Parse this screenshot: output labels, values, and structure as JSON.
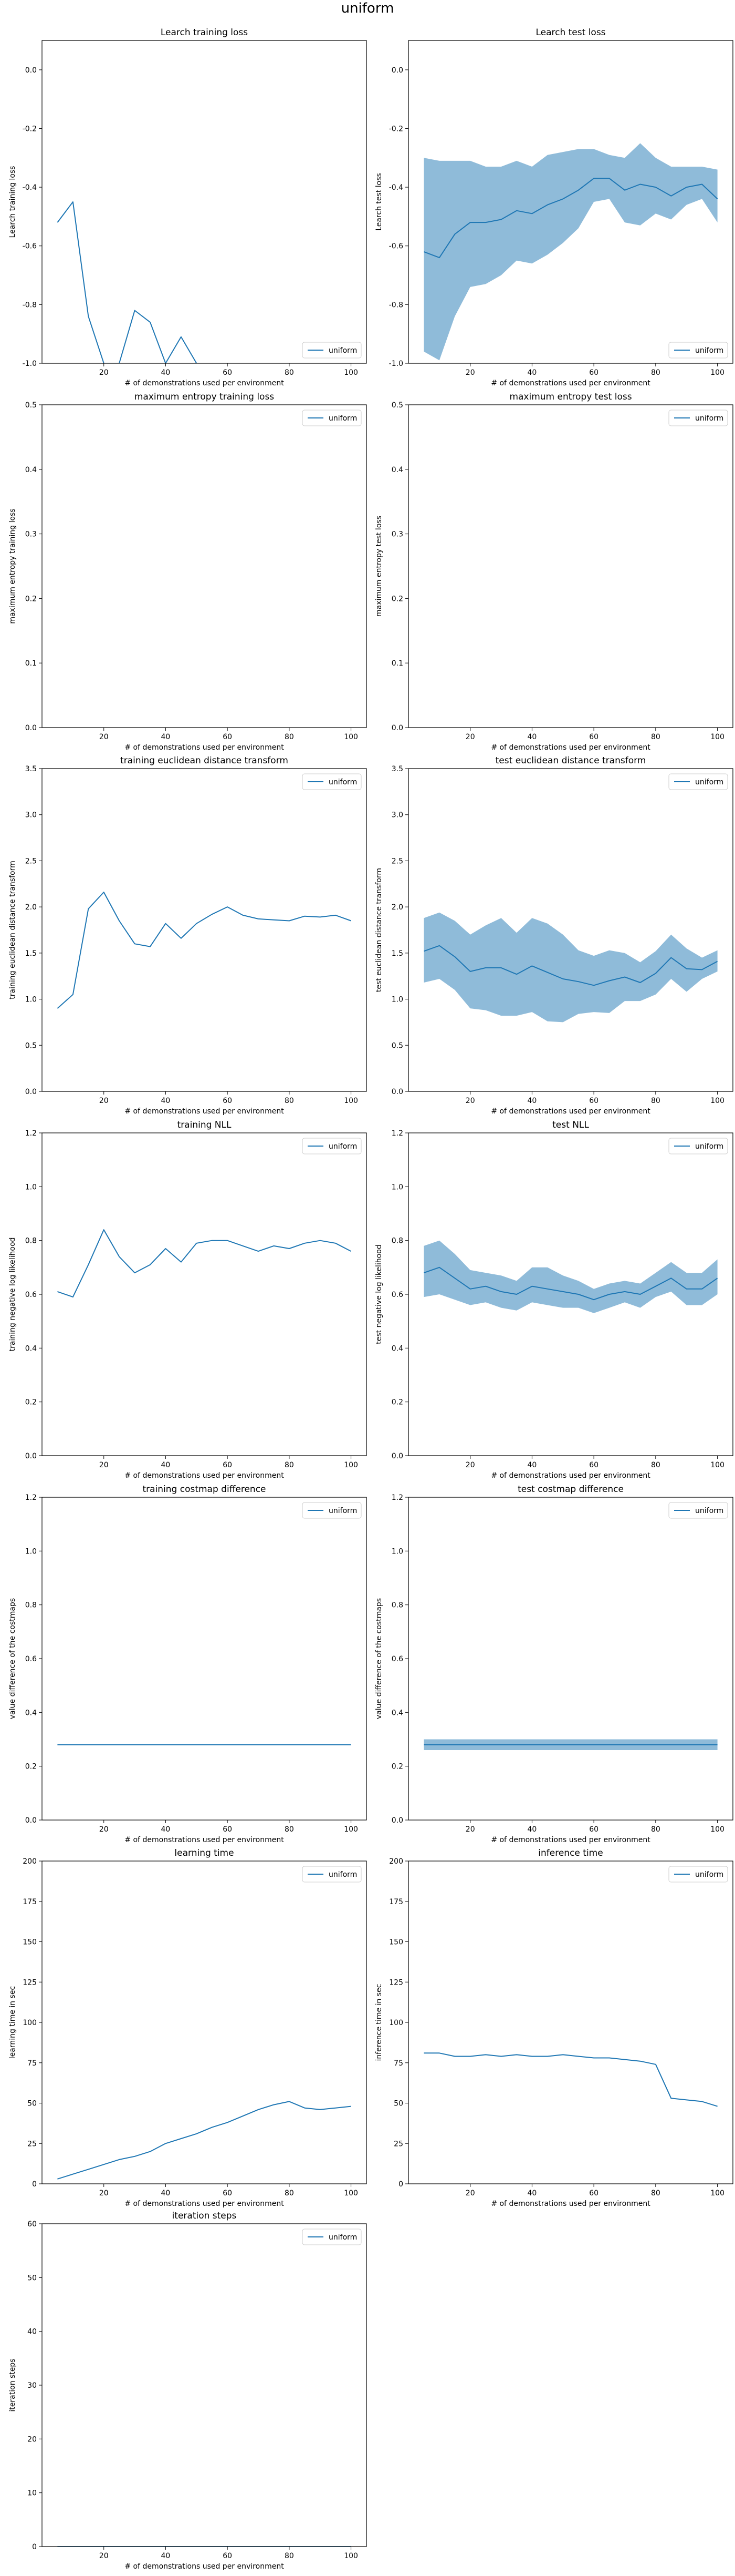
{
  "figure": {
    "suptitle": "uniform"
  },
  "colors": {
    "line": "#1f77b4",
    "band": "#1f77b4"
  },
  "chart_data": [
    {
      "type": "line",
      "title": "Learch training loss",
      "xlabel": "# of demonstrations used per environment",
      "ylabel": "Learch training loss",
      "xlim": [
        0,
        105
      ],
      "ylim": [
        -1.0,
        0.1
      ],
      "xticks": [
        20,
        40,
        60,
        80,
        100
      ],
      "yticks": [
        0.0,
        -0.2,
        -0.4,
        -0.6,
        -0.8,
        -1.0
      ],
      "legend": "lower-right",
      "series": [
        {
          "name": "uniform",
          "x": [
            5,
            10,
            15,
            20,
            25,
            30,
            35,
            40,
            45,
            50
          ],
          "y": [
            -0.52,
            -0.45,
            -0.84,
            -1.0,
            -1.0,
            -0.82,
            -0.86,
            -1.0,
            -0.91,
            -1.0
          ]
        }
      ]
    },
    {
      "type": "line",
      "title": "Learch test loss",
      "xlabel": "# of demonstrations used per environment",
      "ylabel": "Learch test loss",
      "xlim": [
        0,
        105
      ],
      "ylim": [
        -1.0,
        0.1
      ],
      "xticks": [
        20,
        40,
        60,
        80,
        100
      ],
      "yticks": [
        0.0,
        -0.2,
        -0.4,
        -0.6,
        -0.8,
        -1.0
      ],
      "legend": "lower-right",
      "series": [
        {
          "name": "uniform",
          "x": [
            5,
            10,
            15,
            20,
            25,
            30,
            35,
            40,
            45,
            50,
            55,
            60,
            65,
            70,
            75,
            80,
            85,
            90,
            95,
            100
          ],
          "y": [
            -0.62,
            -0.64,
            -0.56,
            -0.52,
            -0.52,
            -0.51,
            -0.48,
            -0.49,
            -0.46,
            -0.44,
            -0.41,
            -0.37,
            -0.37,
            -0.41,
            -0.39,
            -0.4,
            -0.43,
            -0.4,
            -0.39,
            -0.44
          ],
          "lower": [
            -0.96,
            -0.99,
            -0.84,
            -0.74,
            -0.73,
            -0.7,
            -0.65,
            -0.66,
            -0.63,
            -0.59,
            -0.54,
            -0.45,
            -0.44,
            -0.52,
            -0.53,
            -0.49,
            -0.51,
            -0.46,
            -0.44,
            -0.52
          ],
          "upper": [
            -0.3,
            -0.31,
            -0.31,
            -0.31,
            -0.33,
            -0.33,
            -0.31,
            -0.33,
            -0.29,
            -0.28,
            -0.27,
            -0.27,
            -0.29,
            -0.3,
            -0.25,
            -0.3,
            -0.33,
            -0.33,
            -0.33,
            -0.34
          ]
        }
      ]
    },
    {
      "type": "line",
      "title": "maximum entropy training loss",
      "xlabel": "# of demonstrations used per environment",
      "ylabel": "maximum entropy training loss",
      "xlim": [
        0,
        105
      ],
      "ylim": [
        0.0,
        0.5
      ],
      "xticks": [
        20,
        40,
        60,
        80,
        100
      ],
      "yticks": [
        0.0,
        0.1,
        0.2,
        0.3,
        0.4,
        0.5
      ],
      "legend": "top-right",
      "series": [
        {
          "name": "uniform",
          "x": [],
          "y": []
        }
      ]
    },
    {
      "type": "line",
      "title": "maximum entropy test loss",
      "xlabel": "# of demonstrations used per environment",
      "ylabel": "maximum entropy test loss",
      "xlim": [
        0,
        105
      ],
      "ylim": [
        0.0,
        0.5
      ],
      "xticks": [
        20,
        40,
        60,
        80,
        100
      ],
      "yticks": [
        0.0,
        0.1,
        0.2,
        0.3,
        0.4,
        0.5
      ],
      "legend": "top-right",
      "series": [
        {
          "name": "uniform",
          "x": [],
          "y": []
        }
      ]
    },
    {
      "type": "line",
      "title": "training euclidean distance transform",
      "xlabel": "# of demonstrations used per environment",
      "ylabel": "training euclidean distance transform",
      "xlim": [
        0,
        105
      ],
      "ylim": [
        0.0,
        3.5
      ],
      "xticks": [
        20,
        40,
        60,
        80,
        100
      ],
      "yticks": [
        0.0,
        0.5,
        1.0,
        1.5,
        2.0,
        2.5,
        3.0,
        3.5
      ],
      "legend": "top-right",
      "series": [
        {
          "name": "uniform",
          "x": [
            5,
            10,
            15,
            20,
            25,
            30,
            35,
            40,
            45,
            50,
            55,
            60,
            65,
            70,
            75,
            80,
            85,
            90,
            95,
            100
          ],
          "y": [
            0.9,
            1.05,
            1.98,
            2.16,
            1.85,
            1.6,
            1.57,
            1.82,
            1.66,
            1.82,
            1.92,
            2.0,
            1.91,
            1.87,
            1.86,
            1.85,
            1.9,
            1.89,
            1.91,
            1.85
          ]
        }
      ]
    },
    {
      "type": "line",
      "title": "test euclidean distance transform",
      "xlabel": "# of demonstrations used per environment",
      "ylabel": "test euclidean distance transform",
      "xlim": [
        0,
        105
      ],
      "ylim": [
        0.0,
        3.5
      ],
      "xticks": [
        20,
        40,
        60,
        80,
        100
      ],
      "yticks": [
        0.0,
        0.5,
        1.0,
        1.5,
        2.0,
        2.5,
        3.0,
        3.5
      ],
      "legend": "top-right",
      "series": [
        {
          "name": "uniform",
          "x": [
            5,
            10,
            15,
            20,
            25,
            30,
            35,
            40,
            45,
            50,
            55,
            60,
            65,
            70,
            75,
            80,
            85,
            90,
            95,
            100
          ],
          "y": [
            1.52,
            1.58,
            1.46,
            1.3,
            1.34,
            1.34,
            1.27,
            1.36,
            1.29,
            1.22,
            1.19,
            1.15,
            1.2,
            1.24,
            1.18,
            1.28,
            1.45,
            1.33,
            1.32,
            1.41
          ],
          "lower": [
            1.18,
            1.22,
            1.1,
            0.9,
            0.88,
            0.82,
            0.82,
            0.86,
            0.76,
            0.75,
            0.84,
            0.86,
            0.85,
            0.98,
            0.98,
            1.05,
            1.22,
            1.08,
            1.22,
            1.3
          ],
          "upper": [
            1.88,
            1.94,
            1.85,
            1.7,
            1.8,
            1.88,
            1.72,
            1.88,
            1.82,
            1.7,
            1.53,
            1.47,
            1.53,
            1.5,
            1.4,
            1.52,
            1.7,
            1.55,
            1.45,
            1.53
          ]
        }
      ]
    },
    {
      "type": "line",
      "title": "training NLL",
      "xlabel": "# of demonstrations used per environment",
      "ylabel": "training negative log likelihood",
      "xlim": [
        0,
        105
      ],
      "ylim": [
        0.0,
        1.2
      ],
      "xticks": [
        20,
        40,
        60,
        80,
        100
      ],
      "yticks": [
        0.0,
        0.2,
        0.4,
        0.6,
        0.8,
        1.0,
        1.2
      ],
      "legend": "top-right",
      "series": [
        {
          "name": "uniform",
          "x": [
            5,
            10,
            15,
            20,
            25,
            30,
            35,
            40,
            45,
            50,
            55,
            60,
            65,
            70,
            75,
            80,
            85,
            90,
            95,
            100
          ],
          "y": [
            0.61,
            0.59,
            0.71,
            0.84,
            0.74,
            0.68,
            0.71,
            0.77,
            0.72,
            0.79,
            0.8,
            0.8,
            0.78,
            0.76,
            0.78,
            0.77,
            0.79,
            0.8,
            0.79,
            0.76
          ]
        }
      ]
    },
    {
      "type": "line",
      "title": "test NLL",
      "xlabel": "# of demonstrations used per environment",
      "ylabel": "test negative log likelihood",
      "xlim": [
        0,
        105
      ],
      "ylim": [
        0.0,
        1.2
      ],
      "xticks": [
        20,
        40,
        60,
        80,
        100
      ],
      "yticks": [
        0.0,
        0.2,
        0.4,
        0.6,
        0.8,
        1.0,
        1.2
      ],
      "legend": "top-right",
      "series": [
        {
          "name": "uniform",
          "x": [
            5,
            10,
            15,
            20,
            25,
            30,
            35,
            40,
            45,
            50,
            55,
            60,
            65,
            70,
            75,
            80,
            85,
            90,
            95,
            100
          ],
          "y": [
            0.68,
            0.7,
            0.66,
            0.62,
            0.63,
            0.61,
            0.6,
            0.63,
            0.62,
            0.61,
            0.6,
            0.58,
            0.6,
            0.61,
            0.6,
            0.63,
            0.66,
            0.62,
            0.62,
            0.66
          ],
          "lower": [
            0.59,
            0.6,
            0.58,
            0.56,
            0.57,
            0.55,
            0.54,
            0.57,
            0.56,
            0.55,
            0.55,
            0.53,
            0.55,
            0.57,
            0.55,
            0.59,
            0.61,
            0.56,
            0.56,
            0.6
          ],
          "upper": [
            0.78,
            0.8,
            0.75,
            0.69,
            0.68,
            0.67,
            0.65,
            0.7,
            0.7,
            0.67,
            0.65,
            0.62,
            0.64,
            0.65,
            0.64,
            0.68,
            0.72,
            0.68,
            0.68,
            0.73
          ]
        }
      ]
    },
    {
      "type": "line",
      "title": "training costmap difference",
      "xlabel": "# of demonstrations used per environment",
      "ylabel": "value difference of the costmaps",
      "xlim": [
        0,
        105
      ],
      "ylim": [
        0.0,
        1.2
      ],
      "xticks": [
        20,
        40,
        60,
        80,
        100
      ],
      "yticks": [
        0.0,
        0.2,
        0.4,
        0.6,
        0.8,
        1.0,
        1.2
      ],
      "legend": "top-right",
      "series": [
        {
          "name": "uniform",
          "x": [
            5,
            10,
            15,
            20,
            25,
            30,
            35,
            40,
            45,
            50,
            55,
            60,
            65,
            70,
            75,
            80,
            85,
            90,
            95,
            100
          ],
          "y": [
            0.28,
            0.28,
            0.28,
            0.28,
            0.28,
            0.28,
            0.28,
            0.28,
            0.28,
            0.28,
            0.28,
            0.28,
            0.28,
            0.28,
            0.28,
            0.28,
            0.28,
            0.28,
            0.28,
            0.28
          ]
        }
      ]
    },
    {
      "type": "line",
      "title": "test costmap difference",
      "xlabel": "# of demonstrations used per environment",
      "ylabel": "value difference of the costmaps",
      "xlim": [
        0,
        105
      ],
      "ylim": [
        0.0,
        1.2
      ],
      "xticks": [
        20,
        40,
        60,
        80,
        100
      ],
      "yticks": [
        0.0,
        0.2,
        0.4,
        0.6,
        0.8,
        1.0,
        1.2
      ],
      "legend": "top-right",
      "series": [
        {
          "name": "uniform",
          "x": [
            5,
            10,
            15,
            20,
            25,
            30,
            35,
            40,
            45,
            50,
            55,
            60,
            65,
            70,
            75,
            80,
            85,
            90,
            95,
            100
          ],
          "y": [
            0.28,
            0.28,
            0.28,
            0.28,
            0.28,
            0.28,
            0.28,
            0.28,
            0.28,
            0.28,
            0.28,
            0.28,
            0.28,
            0.28,
            0.28,
            0.28,
            0.28,
            0.28,
            0.28,
            0.28
          ],
          "lower": [
            0.26,
            0.26,
            0.26,
            0.26,
            0.26,
            0.26,
            0.26,
            0.26,
            0.26,
            0.26,
            0.26,
            0.26,
            0.26,
            0.26,
            0.26,
            0.26,
            0.26,
            0.26,
            0.26,
            0.26
          ],
          "upper": [
            0.3,
            0.3,
            0.3,
            0.3,
            0.3,
            0.3,
            0.3,
            0.3,
            0.3,
            0.3,
            0.3,
            0.3,
            0.3,
            0.3,
            0.3,
            0.3,
            0.3,
            0.3,
            0.3,
            0.3
          ]
        }
      ]
    },
    {
      "type": "line",
      "title": "learning time",
      "xlabel": "# of demonstrations used per environment",
      "ylabel": "learning time in sec",
      "xlim": [
        0,
        105
      ],
      "ylim": [
        0,
        200
      ],
      "xticks": [
        20,
        40,
        60,
        80,
        100
      ],
      "yticks": [
        0,
        25,
        50,
        75,
        100,
        125,
        150,
        175,
        200
      ],
      "legend": "top-right",
      "series": [
        {
          "name": "uniform",
          "x": [
            5,
            10,
            15,
            20,
            25,
            30,
            35,
            40,
            45,
            50,
            55,
            60,
            65,
            70,
            75,
            80,
            85,
            90,
            95,
            100
          ],
          "y": [
            3,
            6,
            9,
            12,
            15,
            17,
            20,
            25,
            28,
            31,
            35,
            38,
            42,
            46,
            49,
            51,
            47,
            46,
            47,
            48
          ]
        }
      ]
    },
    {
      "type": "line",
      "title": "inference time",
      "xlabel": "# of demonstrations used per environment",
      "ylabel": "inference time in sec",
      "xlim": [
        0,
        105
      ],
      "ylim": [
        0,
        200
      ],
      "xticks": [
        20,
        40,
        60,
        80,
        100
      ],
      "yticks": [
        0,
        25,
        50,
        75,
        100,
        125,
        150,
        175,
        200
      ],
      "legend": "top-right",
      "series": [
        {
          "name": "uniform",
          "x": [
            5,
            10,
            15,
            20,
            25,
            30,
            35,
            40,
            45,
            50,
            55,
            60,
            65,
            70,
            75,
            80,
            85,
            90,
            95,
            100
          ],
          "y": [
            81,
            81,
            79,
            79,
            80,
            79,
            80,
            79,
            79,
            80,
            79,
            78,
            78,
            77,
            76,
            74,
            53,
            52,
            51,
            48
          ]
        }
      ]
    },
    {
      "type": "line",
      "title": "iteration steps",
      "xlabel": "# of demonstrations used per environment",
      "ylabel": "iteration steps",
      "xlim": [
        0,
        105
      ],
      "ylim": [
        0,
        60
      ],
      "xticks": [
        20,
        40,
        60,
        80,
        100
      ],
      "yticks": [
        0,
        10,
        20,
        30,
        40,
        50,
        60
      ],
      "legend": "top-right",
      "series": [
        {
          "name": "uniform",
          "x": [
            5,
            10,
            15,
            20,
            25,
            30,
            35,
            40,
            45,
            50,
            55,
            60,
            65,
            70,
            75,
            80,
            85,
            90,
            95,
            100
          ],
          "y": [
            0,
            0,
            0,
            0,
            0,
            0,
            0,
            0,
            0,
            0,
            0,
            0,
            0,
            0,
            0,
            0,
            0,
            0,
            0,
            0
          ]
        }
      ]
    }
  ]
}
